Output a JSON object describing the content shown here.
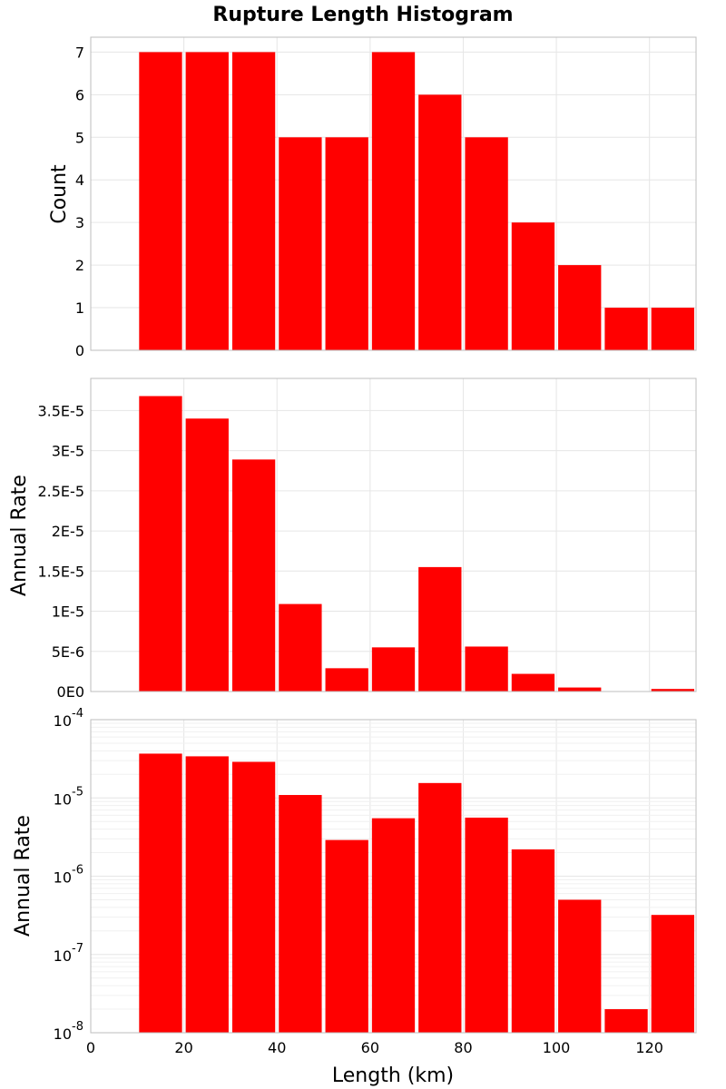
{
  "chart_data": [
    {
      "type": "bar",
      "title": "Rupture Length Histogram",
      "xlabel": "",
      "ylabel": "Count",
      "xlim": [
        0,
        130
      ],
      "ylim": [
        0,
        7.35
      ],
      "bin_width": 10,
      "x": [
        15,
        25,
        35,
        45,
        55,
        65,
        75,
        85,
        95,
        105,
        115,
        125
      ],
      "values": [
        7,
        7,
        7,
        5,
        5,
        7,
        6,
        5,
        3,
        2,
        1,
        1
      ],
      "yticks": [
        0,
        1,
        2,
        3,
        4,
        5,
        6,
        7
      ],
      "ytick_labels": [
        "0",
        "1",
        "2",
        "3",
        "4",
        "5",
        "6",
        "7"
      ],
      "color": "#ff0000",
      "grid": true
    },
    {
      "type": "bar",
      "xlabel": "",
      "ylabel": "Annual Rate",
      "xlim": [
        0,
        130
      ],
      "ylim": [
        0,
        3.9e-05
      ],
      "bin_width": 10,
      "x": [
        15,
        25,
        35,
        45,
        55,
        65,
        75,
        85,
        95,
        105,
        115,
        125
      ],
      "values": [
        3.68e-05,
        3.4e-05,
        2.89e-05,
        1.09e-05,
        2.9e-06,
        5.5e-06,
        1.55e-05,
        5.6e-06,
        2.2e-06,
        5e-07,
        2e-08,
        3.2e-07
      ],
      "yticks": [
        0,
        5e-06,
        1e-05,
        1.5e-05,
        2e-05,
        2.5e-05,
        3e-05,
        3.5e-05
      ],
      "ytick_labels": [
        "0E0",
        "5E-6",
        "1E-5",
        "1.5E-5",
        "2E-5",
        "2.5E-5",
        "3E-5",
        "3.5E-5"
      ],
      "color": "#ff0000",
      "grid": true
    },
    {
      "type": "bar",
      "xlabel": "Length (km)",
      "ylabel": "Annual Rate",
      "xlim": [
        0,
        130
      ],
      "ylim": [
        1e-08,
        0.0001
      ],
      "yscale": "log",
      "bin_width": 10,
      "x": [
        15,
        25,
        35,
        45,
        55,
        65,
        75,
        85,
        95,
        105,
        115,
        125
      ],
      "values": [
        3.68e-05,
        3.4e-05,
        2.89e-05,
        1.09e-05,
        2.9e-06,
        5.5e-06,
        1.55e-05,
        5.6e-06,
        2.2e-06,
        5e-07,
        2e-08,
        3.2e-07
      ],
      "ytick_labels": [
        {
          "base": "10",
          "exp": "-8"
        },
        {
          "base": "10",
          "exp": "-7"
        },
        {
          "base": "10",
          "exp": "-6"
        },
        {
          "base": "10",
          "exp": "-5"
        },
        {
          "base": "10",
          "exp": "-4"
        }
      ],
      "xticks": [
        0,
        20,
        40,
        60,
        80,
        100,
        120
      ],
      "xtick_labels": [
        "0",
        "20",
        "40",
        "60",
        "80",
        "100",
        "120"
      ],
      "color": "#ff0000",
      "grid": true
    }
  ]
}
